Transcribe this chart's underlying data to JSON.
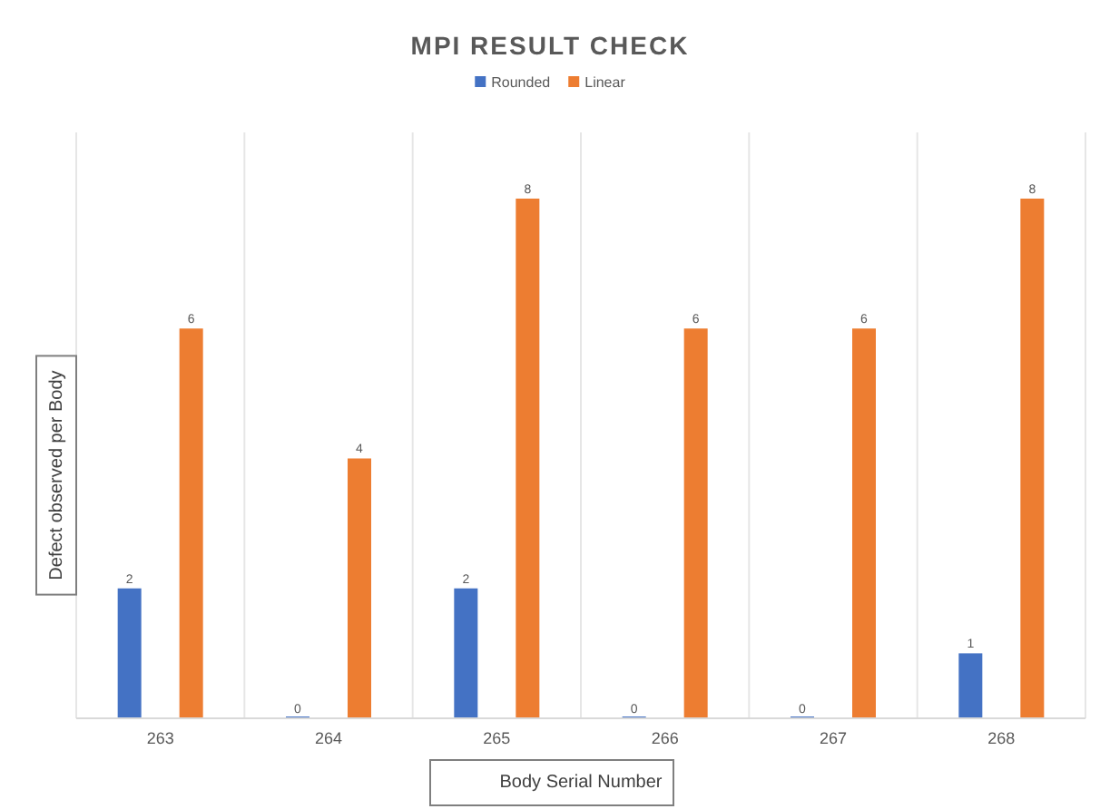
{
  "chart_data": {
    "type": "bar",
    "title": "MPI RESULT CHECK",
    "xlabel": "Body Serial Number",
    "ylabel": "Defect observed per Body",
    "categories": [
      "263",
      "264",
      "265",
      "266",
      "267",
      "268"
    ],
    "series": [
      {
        "name": "Rounded",
        "color": "#4472c4",
        "values": [
          2,
          0,
          2,
          0,
          0,
          1
        ]
      },
      {
        "name": "Linear",
        "color": "#ed7d31",
        "values": [
          6,
          4,
          8,
          6,
          6,
          8
        ]
      }
    ],
    "data_labels": true,
    "grid": "x",
    "legend": "top"
  }
}
